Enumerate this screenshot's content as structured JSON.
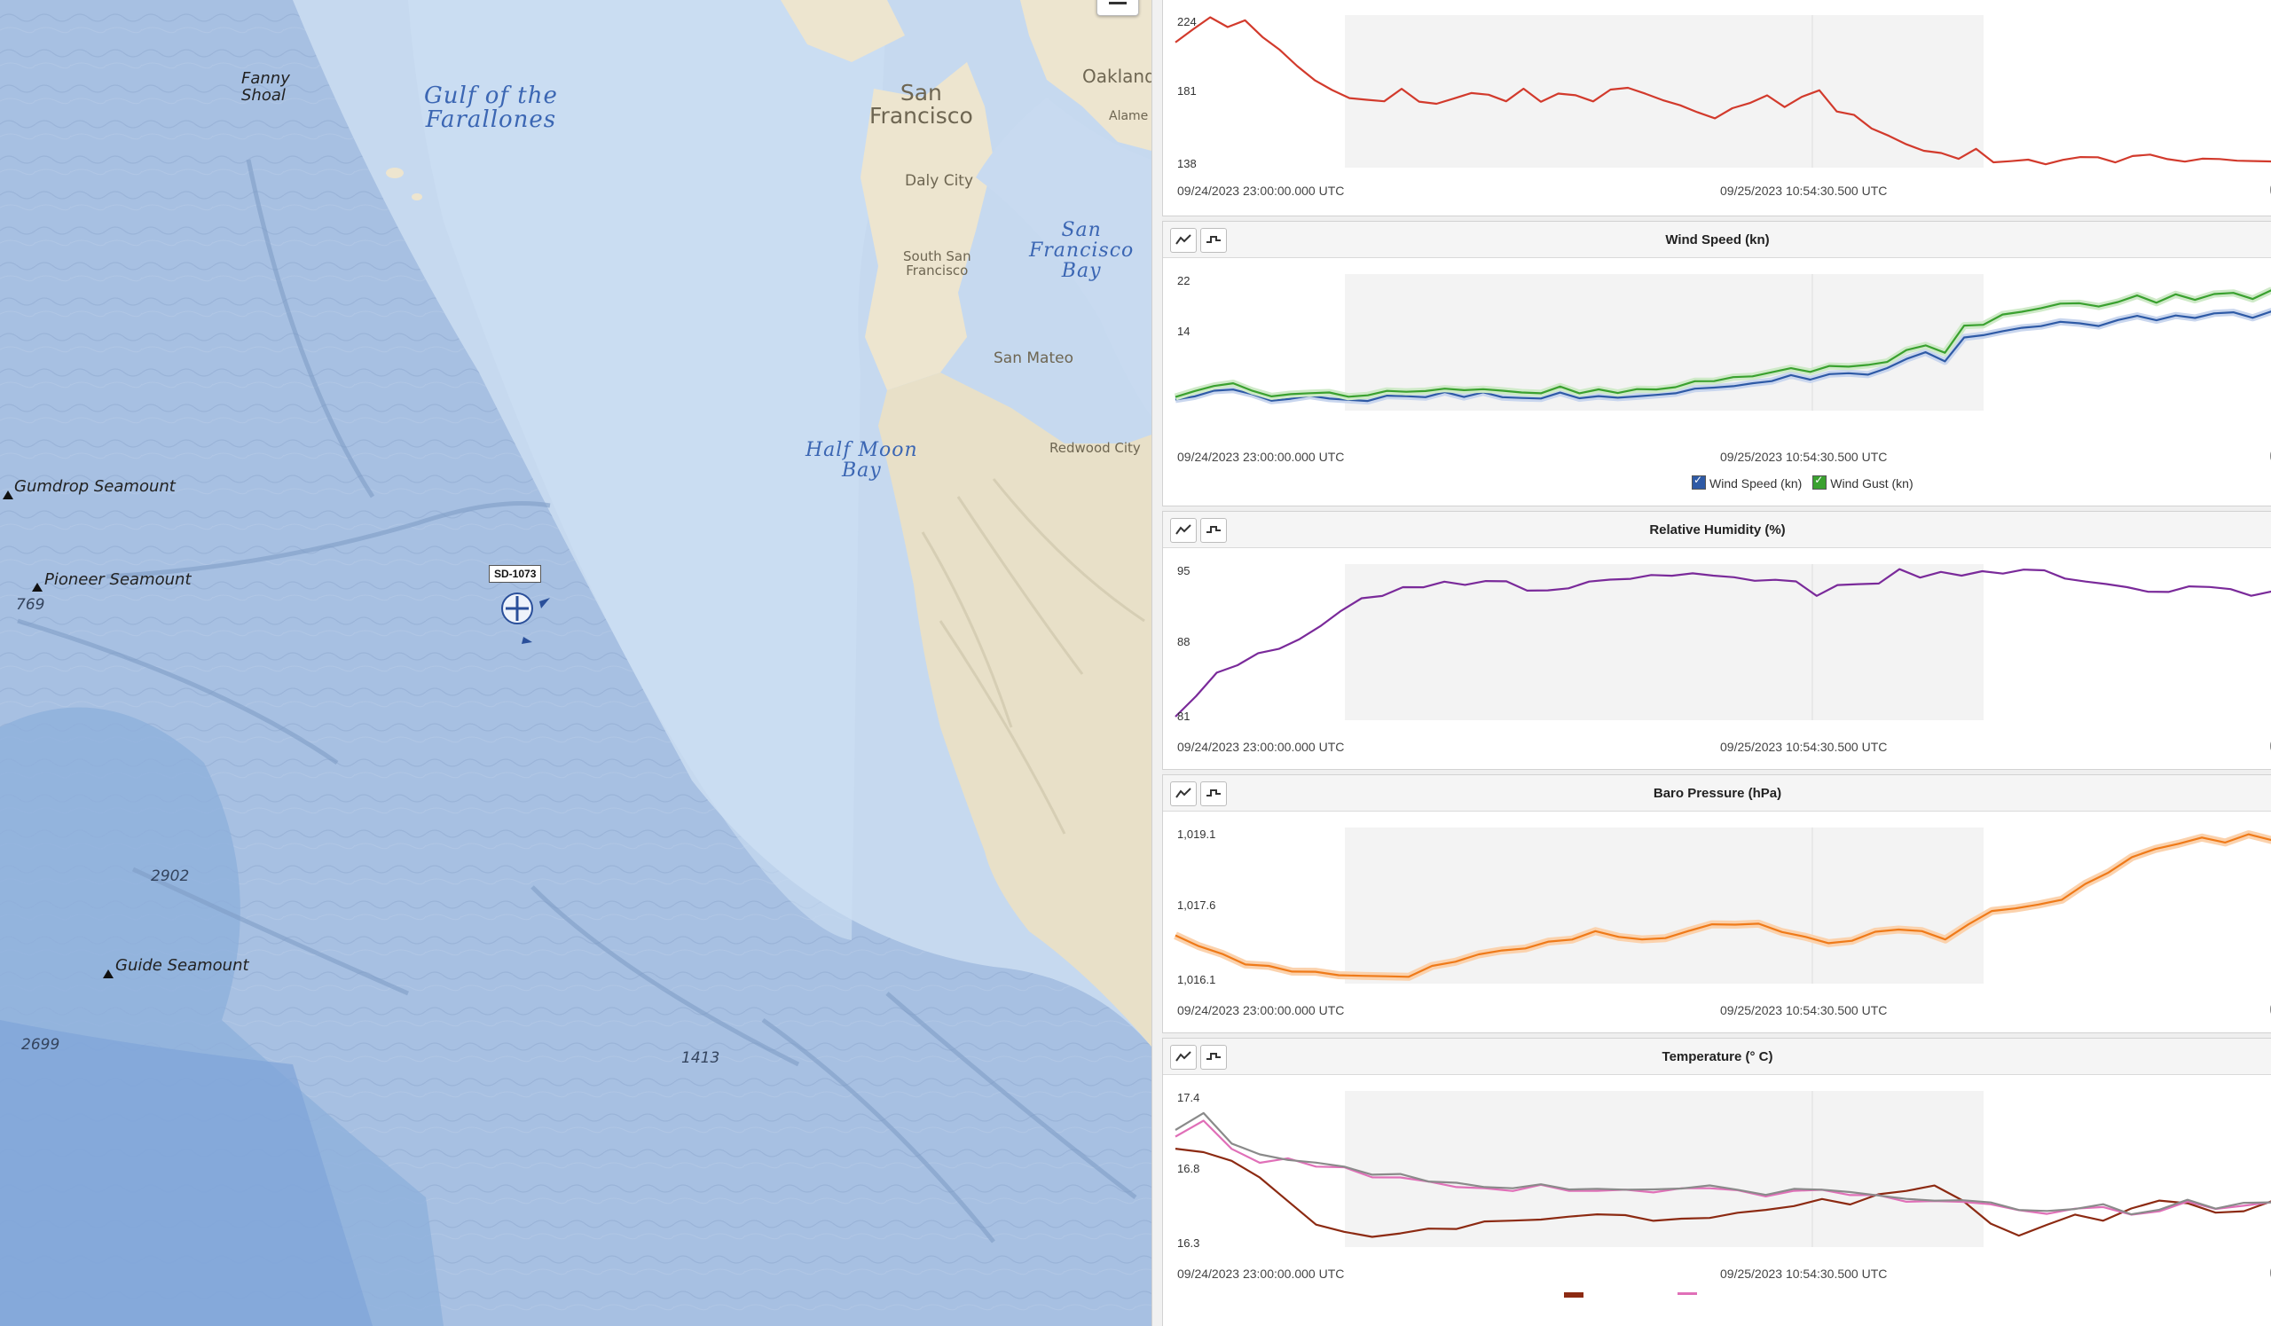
{
  "map": {
    "labels": {
      "fanny_shoal": "Fanny\nShoal",
      "gulf": "Gulf of the\nFarallones",
      "san_francisco": "San\nFrancisco",
      "oakland": "Oakland",
      "alameda": "Alame",
      "daly_city": "Daly City",
      "south_sf": "South San\nFrancisco",
      "sf_bay": "San\nFrancisco\nBay",
      "san_mateo": "San Mateo",
      "half_moon_bay": "Half Moon\nBay",
      "redwood_city": "Redwood City",
      "gumdrop": "Gumdrop Seamount",
      "pioneer": "Pioneer Seamount",
      "guide": "Guide Seamount",
      "d769": "769",
      "d2902": "2902",
      "d2699": "2699",
      "d1413": "1413"
    },
    "buoy": {
      "label": "SD-1073",
      "icon": "buoy-icon"
    },
    "zoom_out": {
      "icon": "minus-icon"
    },
    "colors": {
      "ocean_deep": "#a9c2e3",
      "ocean_shallow": "#c4d7ee",
      "land": "#ede5cf"
    }
  },
  "panels": [
    {
      "id": "top",
      "title": "",
      "y_ticks": [
        "224",
        "181",
        "138"
      ],
      "time_labels": [
        "09/24/2023 23:00:00.000 UTC",
        "09/25/2023 10:54:30.500 UTC"
      ],
      "legend": []
    },
    {
      "id": "wind",
      "title": "Wind Speed (kn)",
      "y_ticks": [
        "22",
        "14"
      ],
      "time_labels": [
        "09/24/2023 23:00:00.000 UTC",
        "09/25/2023 10:54:30.500 UTC"
      ],
      "legend": [
        {
          "label": "Wind Speed (kn)",
          "color": "#2e5aa6"
        },
        {
          "label": "Wind Gust (kn)",
          "color": "#3aa12f"
        }
      ]
    },
    {
      "id": "humidity",
      "title": "Relative Humidity (%)",
      "y_ticks": [
        "95",
        "88",
        "81"
      ],
      "time_labels": [
        "09/24/2023 23:00:00.000 UTC",
        "09/25/2023 10:54:30.500 UTC"
      ],
      "legend": []
    },
    {
      "id": "pressure",
      "title": "Baro Pressure (hPa)",
      "y_ticks": [
        "1,019.1",
        "1,017.6",
        "1,016.1"
      ],
      "time_labels": [
        "09/24/2023 23:00:00.000 UTC",
        "09/25/2023 10:54:30.500 UTC"
      ],
      "legend": []
    },
    {
      "id": "temperature",
      "title": "Temperature (° C)",
      "y_ticks": [
        "17.4",
        "16.8",
        "16.3"
      ],
      "time_labels": [
        "09/24/2023 23:00:00.000 UTC",
        "09/25/2023 10:54:30.500 UTC"
      ],
      "legend": []
    }
  ],
  "chart_data": [
    {
      "type": "line",
      "title": "",
      "ylim": [
        138,
        224
      ],
      "series": [
        {
          "color": "#d23a2c",
          "values": [
            210,
            218,
            224,
            220,
            222,
            214,
            205,
            196,
            188,
            181,
            178,
            175,
            176,
            182,
            175,
            174,
            176,
            181,
            178,
            176,
            182,
            175,
            180,
            178,
            176,
            181,
            184,
            179,
            176,
            173,
            168,
            166,
            170,
            175,
            178,
            172,
            178,
            181,
            170,
            166,
            160,
            154,
            150,
            146,
            144,
            142,
            146,
            140,
            139,
            141,
            138,
            140,
            143,
            141,
            140,
            142,
            144,
            141,
            139,
            142,
            140,
            141,
            139,
            140
          ]
        }
      ]
    },
    {
      "type": "line",
      "title": "Wind Speed (kn)",
      "ylim": [
        6,
        23
      ],
      "series": [
        {
          "name": "Wind Speed (kn)",
          "color": "#2e5aa6",
          "values": [
            7,
            7.5,
            8,
            8.5,
            7.5,
            7,
            7,
            7.5,
            7.2,
            6.8,
            7,
            7.3,
            7.6,
            7.2,
            8,
            7.4,
            7.8,
            7.5,
            7,
            7.3,
            7.8,
            7.2,
            7.5,
            7.1,
            7.6,
            7.4,
            8,
            8.3,
            8.6,
            8.8,
            9,
            9.6,
            10,
            9.8,
            10.2,
            10.5,
            10.3,
            11,
            12.5,
            13,
            12.2,
            15,
            15.5,
            16,
            16.3,
            16.8,
            17,
            17.2,
            16.5,
            17.5,
            18,
            17.3,
            18.2,
            17.5,
            18.5,
            18.3,
            17.8,
            18.6
          ]
        },
        {
          "name": "Wind Gust (kn)",
          "color": "#3aa12f",
          "values": [
            7.5,
            8,
            8.8,
            9.2,
            8,
            7.6,
            7.5,
            8,
            7.8,
            7.4,
            7.6,
            8,
            8.2,
            7.9,
            8.6,
            8.1,
            8.4,
            8.2,
            7.8,
            8,
            8.5,
            8,
            8.2,
            7.9,
            8.4,
            8.2,
            8.8,
            9.2,
            9.6,
            9.8,
            10.1,
            10.6,
            11,
            10.8,
            11.2,
            11.5,
            11.4,
            12,
            13.5,
            14,
            13.3,
            16.5,
            17,
            18,
            18.6,
            19,
            19.5,
            19.8,
            19,
            20,
            20.5,
            19.8,
            20.8,
            20,
            21,
            20.8,
            20.4,
            21.2
          ]
        }
      ]
    },
    {
      "type": "line",
      "title": "Relative Humidity (%)",
      "ylim": [
        81,
        95
      ],
      "series": [
        {
          "color": "#7a2a9a",
          "values": [
            81,
            83,
            85,
            86,
            86.8,
            87.5,
            88.2,
            89.5,
            91,
            92,
            92.5,
            93,
            93.3,
            93.6,
            93.4,
            93.8,
            93.6,
            93,
            92.7,
            93.2,
            93.6,
            93.9,
            94,
            94.2,
            94.4,
            94.3,
            94.4,
            94,
            93.8,
            93.9,
            93.6,
            92.5,
            93.2,
            93.6,
            93.4,
            94.9,
            94.1,
            94.5,
            94.4,
            94.5,
            94.6,
            94.7,
            94.8,
            94,
            93.6,
            93.6,
            93,
            92.9,
            92.6,
            93.3,
            93.2,
            92.9,
            92.5,
            92.6
          ]
        }
      ]
    },
    {
      "type": "line",
      "title": "Baro Pressure (hPa)",
      "ylim": [
        1016.1,
        1019.1
      ],
      "series": [
        {
          "color": "#ef7a19",
          "values": [
            1017.0,
            1016.8,
            1016.6,
            1016.45,
            1016.35,
            1016.3,
            1016.25,
            1016.2,
            1016.2,
            1016.15,
            1016.2,
            1016.35,
            1016.5,
            1016.6,
            1016.7,
            1016.75,
            1016.85,
            1016.95,
            1017.05,
            1017.0,
            1016.9,
            1016.95,
            1017.1,
            1017.2,
            1017.25,
            1017.2,
            1017.1,
            1016.95,
            1016.85,
            1016.9,
            1017.05,
            1017.15,
            1017.05,
            1016.95,
            1017.2,
            1017.5,
            1017.55,
            1017.6,
            1017.75,
            1018.0,
            1018.3,
            1018.55,
            1018.75,
            1018.85,
            1018.95,
            1018.9,
            1019.0,
            1018.95
          ]
        }
      ]
    },
    {
      "type": "line",
      "title": "Temperature (° C)",
      "ylim": [
        16.3,
        17.4
      ],
      "series": [
        {
          "color": "#8c2a12",
          "values": [
            17.0,
            16.98,
            16.9,
            16.8,
            16.6,
            16.45,
            16.38,
            16.35,
            16.38,
            16.4,
            16.42,
            16.45,
            16.48,
            16.47,
            16.5,
            16.52,
            16.5,
            16.48,
            16.47,
            16.5,
            16.52,
            16.55,
            16.58,
            16.62,
            16.6,
            16.65,
            16.7,
            16.72,
            16.62,
            16.45,
            16.35,
            16.45,
            16.5,
            16.48,
            16.55,
            16.62,
            16.6,
            16.52,
            16.55,
            16.6
          ]
        },
        {
          "color": "#e070b8",
          "values": [
            17.1,
            17.2,
            17.0,
            16.9,
            16.92,
            16.88,
            16.85,
            16.8,
            16.78,
            16.76,
            16.72,
            16.7,
            16.7,
            16.72,
            16.7,
            16.68,
            16.7,
            16.68,
            16.7,
            16.72,
            16.68,
            16.66,
            16.68,
            16.7,
            16.66,
            16.65,
            16.62,
            16.6,
            16.62,
            16.58,
            16.55,
            16.52,
            16.55,
            16.58,
            16.5,
            16.55,
            16.6,
            16.56,
            16.58,
            16.6
          ]
        },
        {
          "color": "#8a8a8a",
          "values": [
            17.15,
            17.25,
            17.05,
            16.95,
            16.92,
            16.9,
            16.86,
            16.82,
            16.8,
            16.77,
            16.74,
            16.72,
            16.71,
            16.73,
            16.71,
            16.69,
            16.71,
            16.69,
            16.71,
            16.73,
            16.69,
            16.67,
            16.69,
            16.71,
            16.67,
            16.66,
            16.63,
            16.61,
            16.63,
            16.59,
            16.56,
            16.53,
            16.56,
            16.59,
            16.51,
            16.56,
            16.61,
            16.57,
            16.59,
            16.61
          ]
        }
      ]
    }
  ]
}
